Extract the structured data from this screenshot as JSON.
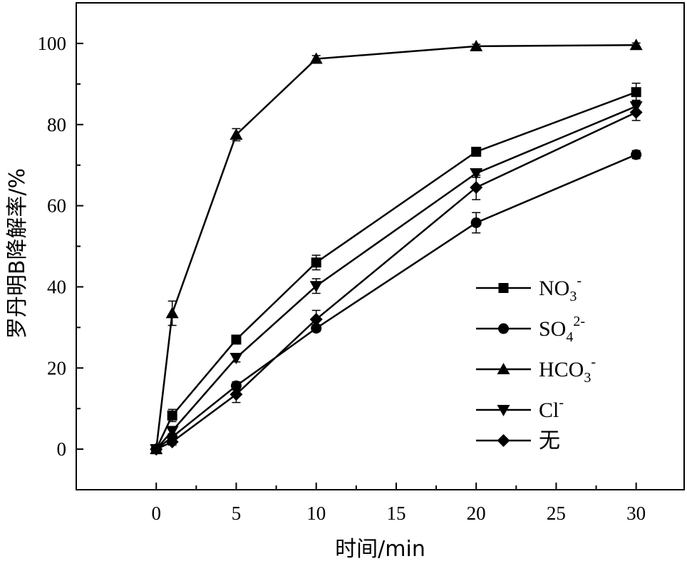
{
  "chart_data": {
    "type": "line",
    "xlabel": "时间/min",
    "ylabel": "罗丹明B降解率/%",
    "xlim": [
      -5,
      33
    ],
    "ylim": [
      -10,
      110
    ],
    "xticks": [
      0,
      5,
      10,
      15,
      20,
      25,
      30
    ],
    "xtick_labels": [
      "0",
      "5",
      "10",
      "15",
      "20",
      "25",
      "30"
    ],
    "yticks": [
      0,
      20,
      40,
      60,
      80,
      100
    ],
    "ytick_labels": [
      "0",
      "20",
      "40",
      "60",
      "80",
      "100"
    ],
    "x": [
      0,
      1,
      5,
      10,
      20,
      30
    ],
    "legend_position": "right",
    "series": [
      {
        "name": "NO3-",
        "label_base": "NO",
        "label_sub": "3",
        "label_sup": "-",
        "marker": "square",
        "values": [
          0,
          8.3,
          27.0,
          46.0,
          73.3,
          88.0
        ],
        "errors": [
          0,
          1.5,
          0.8,
          1.8,
          0.8,
          2.2
        ]
      },
      {
        "name": "SO42-",
        "label_base": "SO",
        "label_sub": "4",
        "label_sup": "2-",
        "marker": "circle",
        "values": [
          0,
          3.0,
          15.6,
          29.8,
          55.8,
          72.6
        ],
        "errors": [
          0,
          0.8,
          1.0,
          0.8,
          2.5,
          1.0
        ]
      },
      {
        "name": "HCO3-",
        "label_base": "HCO",
        "label_sub": "3",
        "label_sup": "-",
        "marker": "triangle-up",
        "values": [
          0,
          33.5,
          77.5,
          96.2,
          99.3,
          99.6
        ],
        "errors": [
          0,
          3.0,
          1.5,
          0.8,
          0.5,
          0.5
        ]
      },
      {
        "name": "Cl-",
        "label_base": "Cl",
        "label_sub": "",
        "label_sup": "-",
        "marker": "triangle-down",
        "values": [
          0,
          4.5,
          22.5,
          40.2,
          68.0,
          84.5
        ],
        "errors": [
          0,
          1.0,
          1.0,
          1.8,
          1.0,
          1.5
        ]
      },
      {
        "name": "无",
        "label_base": "无",
        "label_sub": "",
        "label_sup": "",
        "marker": "diamond",
        "values": [
          0,
          1.8,
          13.5,
          32.0,
          64.5,
          83.0
        ],
        "errors": [
          0,
          0.8,
          2.0,
          2.2,
          3.0,
          2.0
        ]
      }
    ]
  }
}
